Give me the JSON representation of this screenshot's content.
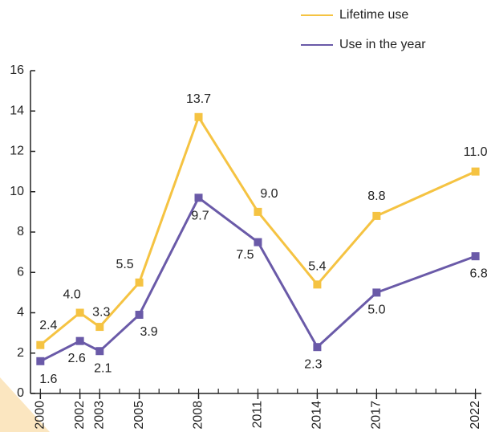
{
  "chart_data": {
    "type": "line",
    "x": [
      2000,
      2002,
      2003,
      2005,
      2008,
      2011,
      2014,
      2017,
      2022
    ],
    "series": [
      {
        "name": "Lifetime use",
        "color": "#f5c342",
        "values": [
          2.4,
          4.0,
          3.3,
          5.5,
          13.7,
          9.0,
          5.4,
          8.8,
          11.0
        ],
        "value_labels": [
          "2.4",
          "4.0",
          "3.3",
          "5.5",
          "13.7",
          "9.0",
          "5.4",
          "8.8",
          "11.0"
        ]
      },
      {
        "name": "Use in the year",
        "color": "#6a5aa8",
        "values": [
          1.6,
          2.6,
          2.1,
          3.9,
          9.7,
          7.5,
          2.3,
          5.0,
          6.8
        ],
        "value_labels": [
          "1.6",
          "2.6",
          "2.1",
          "3.9",
          "9.7",
          "7.5",
          "2.3",
          "5.0",
          "6.8"
        ]
      }
    ],
    "xlim": [
      1999.5,
      2022.3
    ],
    "xticks": [
      2000,
      2002,
      2003,
      2005,
      2008,
      2011,
      2014,
      2017,
      2022
    ],
    "xminorticks": [
      2000,
      2001,
      2002,
      2003,
      2004,
      2005,
      2006,
      2007,
      2008,
      2009,
      2010,
      2011,
      2012,
      2013,
      2014,
      2015,
      2016,
      2017,
      2018,
      2019,
      2020,
      2021,
      2022
    ],
    "ylim": [
      0,
      16
    ],
    "yticks": [
      0,
      2,
      4,
      6,
      8,
      10,
      12,
      14,
      16
    ],
    "legend": "top-right"
  }
}
